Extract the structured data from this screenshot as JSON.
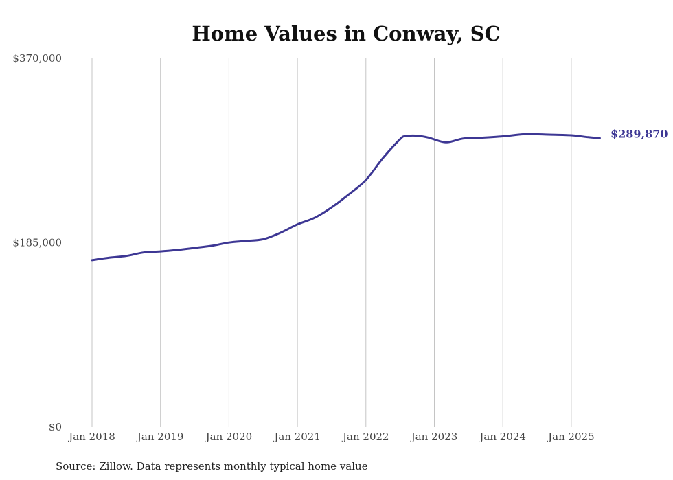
{
  "chart_data": {
    "type": "line",
    "title": "Home Values in Conway, SC",
    "xlabel": "",
    "ylabel": "",
    "source": "Source: Zillow. Data represents monthly typical home value",
    "ylim": [
      0,
      370000
    ],
    "yticks": [
      {
        "value": 0,
        "label": "$0"
      },
      {
        "value": 185000,
        "label": "$185,000"
      },
      {
        "value": 370000,
        "label": "$370,000"
      }
    ],
    "xlim": [
      "2018-01",
      "2025-06"
    ],
    "xticks": [
      {
        "date": "2018-01",
        "label": "Jan 2018"
      },
      {
        "date": "2019-01",
        "label": "Jan 2019"
      },
      {
        "date": "2020-01",
        "label": "Jan 2020"
      },
      {
        "date": "2021-01",
        "label": "Jan 2021"
      },
      {
        "date": "2022-01",
        "label": "Jan 2022"
      },
      {
        "date": "2023-01",
        "label": "Jan 2023"
      },
      {
        "date": "2024-01",
        "label": "Jan 2024"
      },
      {
        "date": "2025-01",
        "label": "Jan 2025"
      }
    ],
    "grid": "vertical",
    "color": "#3d3794",
    "end_label": "$289,870",
    "series": [
      {
        "values": [
          {
            "date": "2018-01",
            "y": 167500
          },
          {
            "date": "2018-04",
            "y": 170000
          },
          {
            "date": "2018-07",
            "y": 171800
          },
          {
            "date": "2018-10",
            "y": 175200
          },
          {
            "date": "2019-01",
            "y": 176300
          },
          {
            "date": "2019-04",
            "y": 177800
          },
          {
            "date": "2019-07",
            "y": 179800
          },
          {
            "date": "2019-10",
            "y": 182000
          },
          {
            "date": "2020-01",
            "y": 185200
          },
          {
            "date": "2020-04",
            "y": 186800
          },
          {
            "date": "2020-07",
            "y": 188500
          },
          {
            "date": "2020-10",
            "y": 195000
          },
          {
            "date": "2021-01",
            "y": 203400
          },
          {
            "date": "2021-04",
            "y": 210000
          },
          {
            "date": "2021-07",
            "y": 220500
          },
          {
            "date": "2021-10",
            "y": 233500
          },
          {
            "date": "2022-01",
            "y": 248000
          },
          {
            "date": "2022-04",
            "y": 270000
          },
          {
            "date": "2022-07",
            "y": 289000
          },
          {
            "date": "2022-08",
            "y": 292000
          },
          {
            "date": "2022-10",
            "y": 292400
          },
          {
            "date": "2022-12",
            "y": 290500
          },
          {
            "date": "2023-03",
            "y": 285700
          },
          {
            "date": "2023-06",
            "y": 289500
          },
          {
            "date": "2023-09",
            "y": 290300
          },
          {
            "date": "2024-01",
            "y": 291800
          },
          {
            "date": "2024-05",
            "y": 294000
          },
          {
            "date": "2024-09",
            "y": 293500
          },
          {
            "date": "2025-01",
            "y": 292800
          },
          {
            "date": "2025-04",
            "y": 290900
          },
          {
            "date": "2025-06",
            "y": 289870
          }
        ]
      }
    ]
  }
}
